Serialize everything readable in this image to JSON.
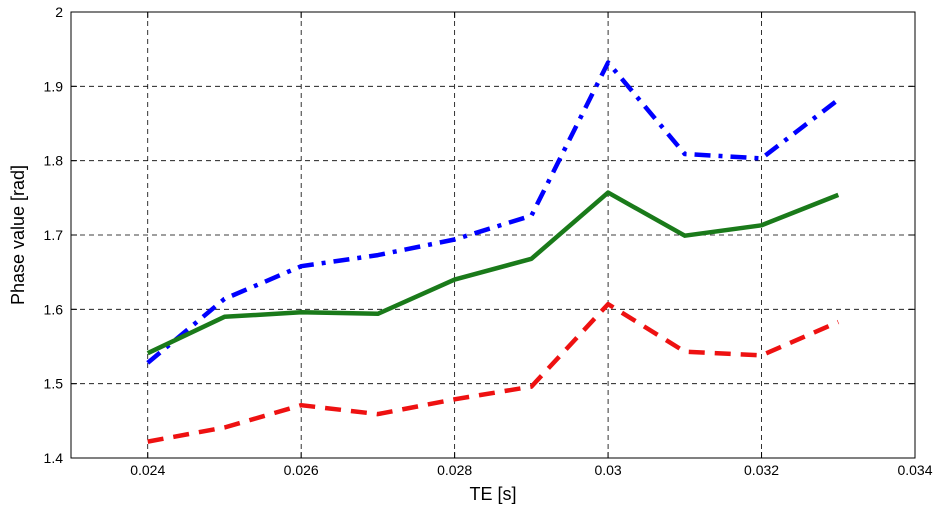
{
  "chart_data": {
    "type": "line",
    "title": "",
    "xlabel": "TE [s]",
    "ylabel": "Phase value [rad]",
    "xlim": [
      0.023,
      0.034
    ],
    "ylim": [
      1.4,
      2.0
    ],
    "xticks": [
      0.024,
      0.026,
      0.028,
      0.03,
      0.032,
      0.034
    ],
    "xtick_labels": [
      "0.024",
      "0.026",
      "0.028",
      "0.03",
      "0.032",
      "0.034"
    ],
    "yticks": [
      1.4,
      1.5,
      1.6,
      1.7,
      1.8,
      1.9,
      2.0
    ],
    "ytick_labels": [
      "1.4",
      "1.5",
      "1.6",
      "1.7",
      "1.8",
      "1.9",
      "2"
    ],
    "grid": true,
    "x": [
      0.024,
      0.025,
      0.026,
      0.027,
      0.028,
      0.029,
      0.03,
      0.031,
      0.032,
      0.033
    ],
    "series": [
      {
        "color": "#0000ff",
        "line_style": "dash-dot",
        "values": [
          1.528,
          1.614,
          1.658,
          1.673,
          1.694,
          1.726,
          1.932,
          1.809,
          1.803,
          1.882
        ]
      },
      {
        "color": "#1a7a1a",
        "line_style": "solid",
        "values": [
          1.541,
          1.59,
          1.596,
          1.594,
          1.64,
          1.668,
          1.757,
          1.699,
          1.713,
          1.754
        ]
      },
      {
        "color": "#ee1111",
        "line_style": "dashed",
        "values": [
          1.422,
          1.441,
          1.471,
          1.459,
          1.479,
          1.496,
          1.607,
          1.543,
          1.538,
          1.583
        ]
      }
    ]
  }
}
